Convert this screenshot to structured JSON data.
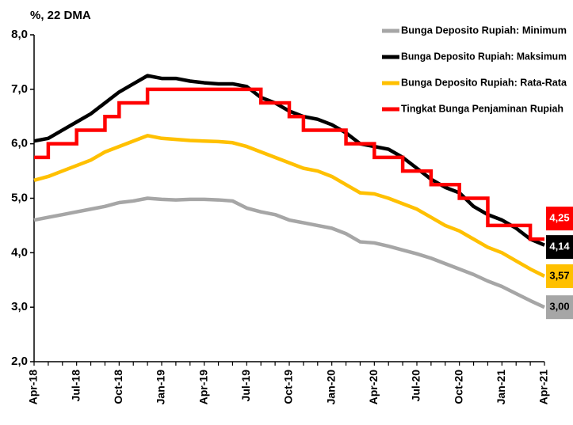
{
  "chart_data": {
    "type": "line",
    "title": "%, 22 DMA",
    "categories": [
      "Apr-18",
      null,
      null,
      "Jul-18",
      null,
      null,
      "Oct-18",
      null,
      null,
      "Jan-19",
      null,
      null,
      "Apr-19",
      null,
      null,
      "Jul-19",
      null,
      null,
      "Oct-19",
      null,
      null,
      "Jan-20",
      null,
      null,
      "Apr-20",
      null,
      null,
      "Jul-20",
      null,
      null,
      "Oct-20",
      null,
      null,
      "Jan-21",
      null,
      null,
      "Apr-21"
    ],
    "ylim": [
      2,
      8
    ],
    "yticks": [
      {
        "value": 2,
        "label": "2,0"
      },
      {
        "value": 3,
        "label": "3,0"
      },
      {
        "value": 4,
        "label": "4,0"
      },
      {
        "value": 5,
        "label": "5,0"
      },
      {
        "value": 6,
        "label": "6,0"
      },
      {
        "value": 7,
        "label": "7,0"
      },
      {
        "value": 8,
        "label": "8,0"
      }
    ],
    "grid": false,
    "legend": "top-right",
    "series": [
      {
        "name": "Bunga Deposito Rupiah: Minimum",
        "color": "#a6a6a6",
        "values": [
          4.6,
          4.65,
          4.7,
          4.75,
          4.8,
          4.85,
          4.92,
          4.95,
          5.0,
          4.98,
          4.97,
          4.98,
          4.98,
          4.97,
          4.95,
          4.82,
          4.75,
          4.7,
          4.6,
          4.55,
          4.5,
          4.45,
          4.35,
          4.2,
          4.18,
          4.12,
          4.05,
          3.98,
          3.9,
          3.8,
          3.7,
          3.6,
          3.48,
          3.38,
          3.25,
          3.12,
          3.0
        ],
        "value_labels": [
          null,
          null,
          null,
          null,
          null,
          null,
          null,
          null,
          null,
          null,
          null,
          null,
          null,
          null,
          null,
          null,
          null,
          null,
          null,
          null,
          null,
          null,
          null,
          null,
          null,
          null,
          null,
          null,
          null,
          null,
          null,
          null,
          null,
          null,
          null,
          null,
          "3,00"
        ]
      },
      {
        "name": "Bunga Deposito Rupiah: Maksimum",
        "color": "#000000",
        "values": [
          6.05,
          6.1,
          6.25,
          6.4,
          6.55,
          6.75,
          6.95,
          7.1,
          7.25,
          7.2,
          7.2,
          7.15,
          7.12,
          7.1,
          7.1,
          7.05,
          6.85,
          6.75,
          6.6,
          6.5,
          6.45,
          6.35,
          6.2,
          6.0,
          5.95,
          5.9,
          5.75,
          5.55,
          5.35,
          5.2,
          5.1,
          4.85,
          4.7,
          4.6,
          4.45,
          4.25,
          4.14
        ],
        "value_labels": [
          null,
          null,
          null,
          null,
          null,
          null,
          null,
          null,
          null,
          null,
          null,
          null,
          null,
          null,
          null,
          null,
          null,
          null,
          null,
          null,
          null,
          null,
          null,
          null,
          null,
          null,
          null,
          null,
          null,
          null,
          null,
          null,
          null,
          null,
          null,
          null,
          "4,14"
        ]
      },
      {
        "name": "Bunga Deposito Rupiah: Rata-Rata",
        "color": "#ffc000",
        "values": [
          5.33,
          5.4,
          5.5,
          5.6,
          5.7,
          5.85,
          5.95,
          6.05,
          6.15,
          6.1,
          6.08,
          6.06,
          6.05,
          6.04,
          6.02,
          5.95,
          5.85,
          5.75,
          5.65,
          5.55,
          5.5,
          5.4,
          5.25,
          5.1,
          5.08,
          5.0,
          4.9,
          4.8,
          4.65,
          4.5,
          4.4,
          4.25,
          4.1,
          4.0,
          3.85,
          3.7,
          3.57
        ],
        "value_labels": [
          null,
          null,
          null,
          null,
          null,
          null,
          null,
          null,
          null,
          null,
          null,
          null,
          null,
          null,
          null,
          null,
          null,
          null,
          null,
          null,
          null,
          null,
          null,
          null,
          null,
          null,
          null,
          null,
          null,
          null,
          null,
          null,
          null,
          null,
          null,
          null,
          "3,57"
        ]
      },
      {
        "name": "Tingkat Bunga Penjaminan Rupiah",
        "color": "#ff0000",
        "step": true,
        "values": [
          5.75,
          6.0,
          6.0,
          6.25,
          6.25,
          6.5,
          6.75,
          6.75,
          7.0,
          7.0,
          7.0,
          7.0,
          7.0,
          7.0,
          7.0,
          7.0,
          6.75,
          6.75,
          6.5,
          6.25,
          6.25,
          6.25,
          6.0,
          6.0,
          5.75,
          5.75,
          5.5,
          5.5,
          5.25,
          5.25,
          5.0,
          5.0,
          4.5,
          4.5,
          4.5,
          4.25,
          4.25
        ],
        "value_labels": [
          null,
          null,
          null,
          null,
          null,
          null,
          null,
          null,
          null,
          null,
          null,
          null,
          null,
          null,
          null,
          null,
          null,
          null,
          null,
          null,
          null,
          null,
          null,
          null,
          null,
          null,
          null,
          null,
          null,
          null,
          null,
          null,
          null,
          null,
          null,
          null,
          "4,25"
        ]
      }
    ]
  }
}
